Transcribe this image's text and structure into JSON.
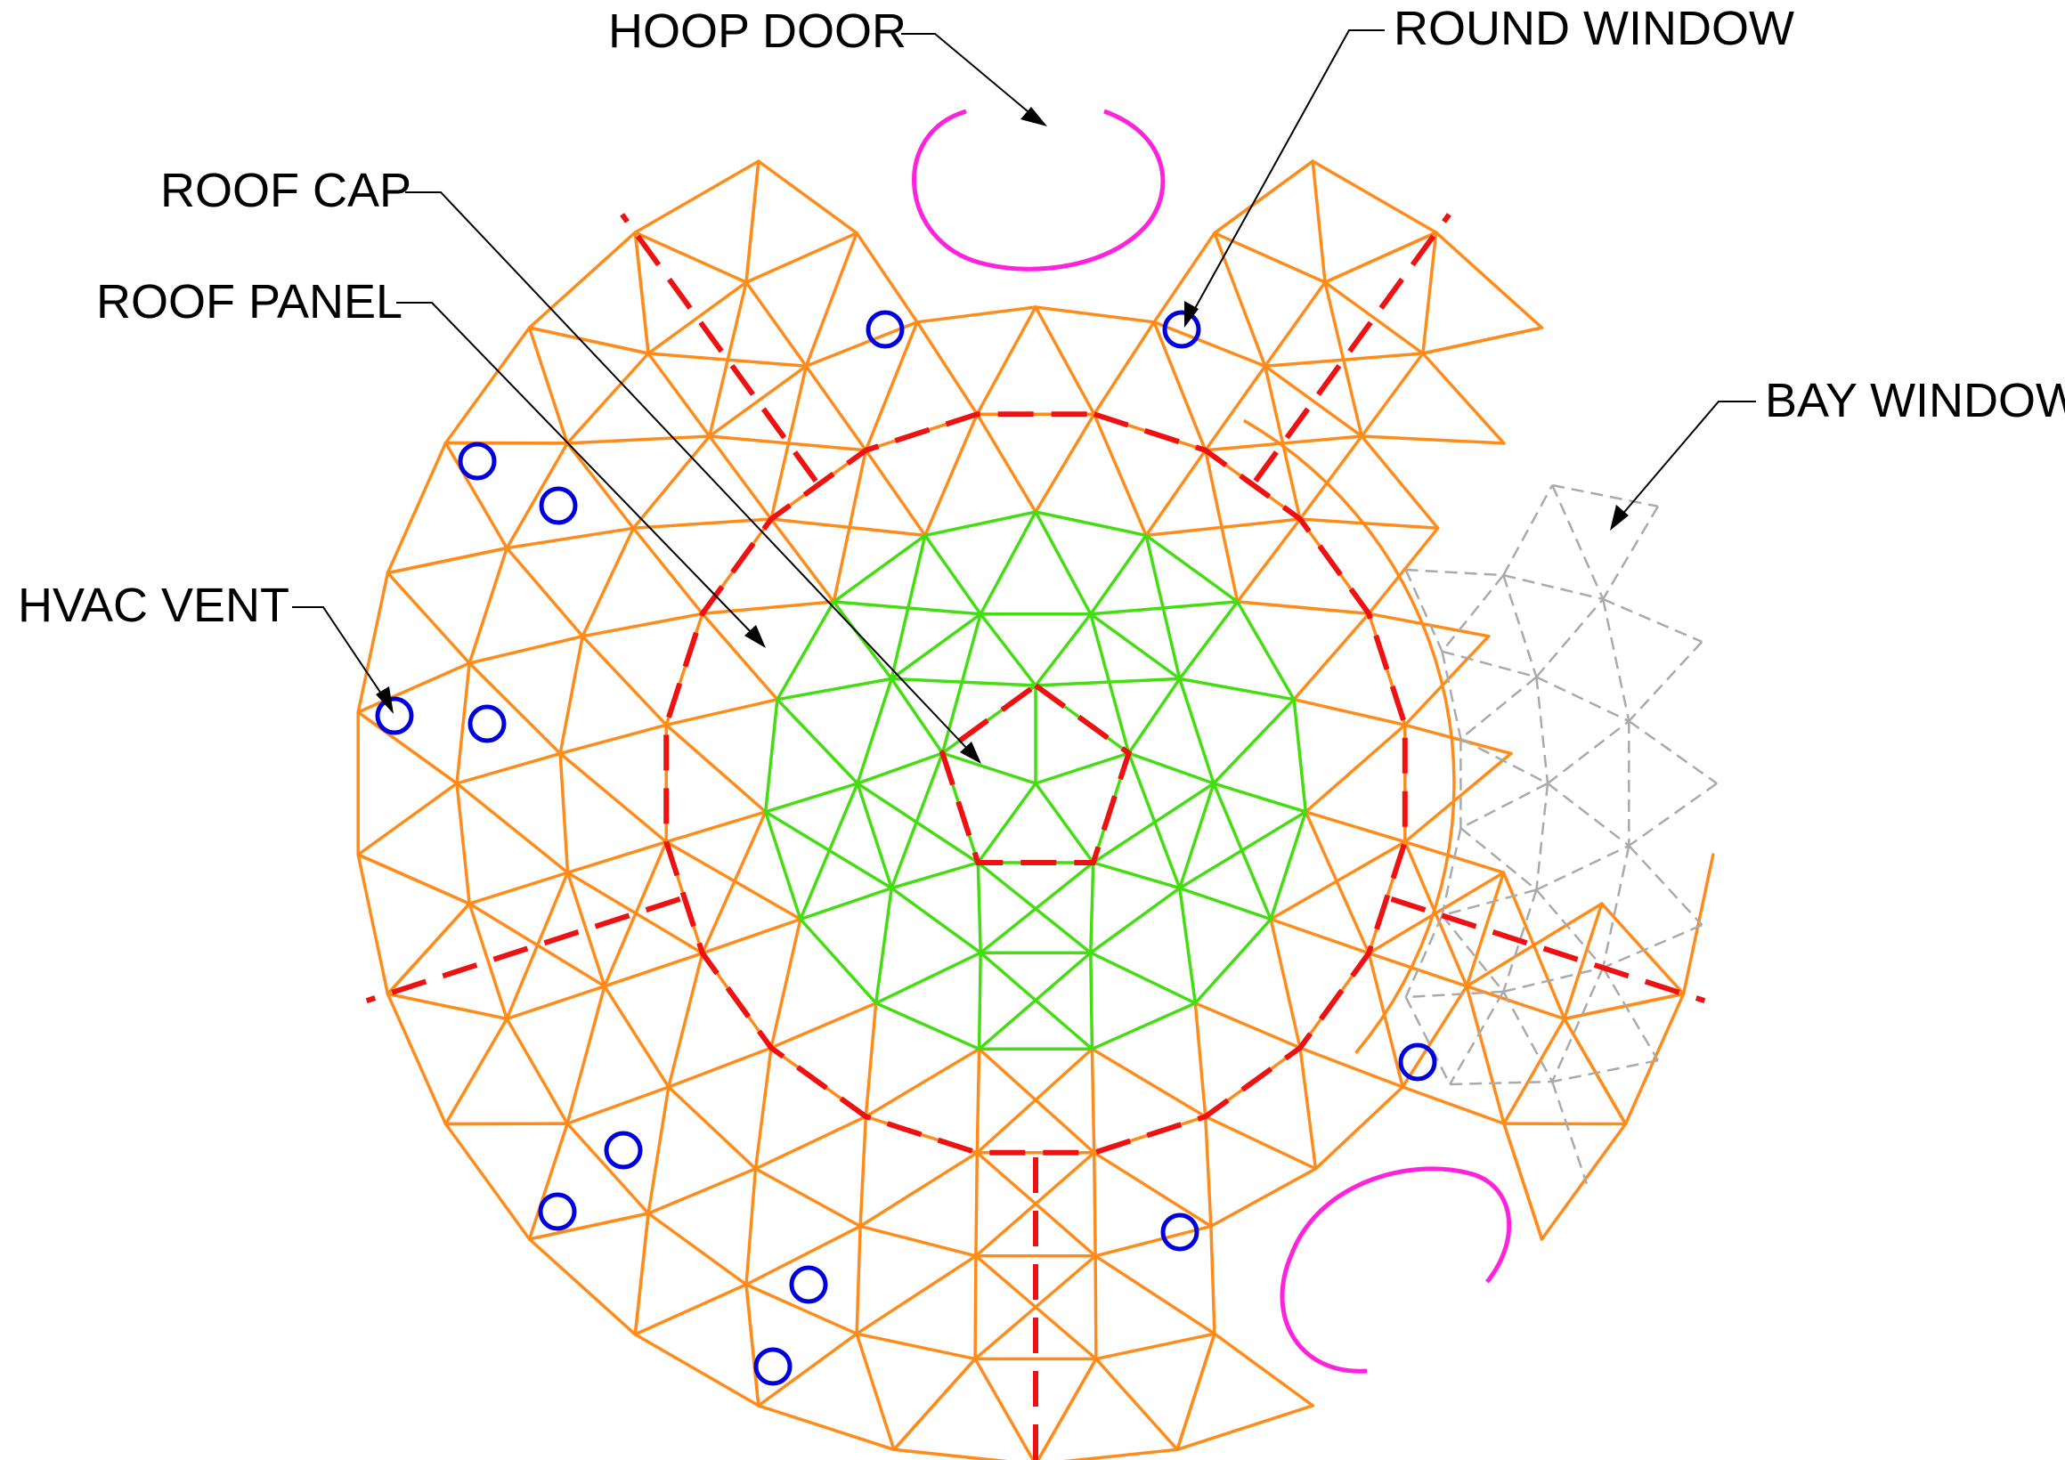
{
  "colors": {
    "dome_frame": "#ff8c1a",
    "roof_cap": "#44dd11",
    "panel_seam": "#ee1111",
    "hoop_door": "#ff22dd",
    "hvac_vent": "#0000dd",
    "bay_window": "#aaaaaa",
    "label_text": "#000000"
  },
  "labels": {
    "hoop_door": "HOOP DOOR",
    "round_window": "ROUND WINDOW",
    "roof_cap": "ROOF CAP",
    "roof_panel": "ROOF PANEL",
    "bay_window": "BAY WINDOW",
    "hvac_vent": "HVAC VENT"
  },
  "icons": {
    "hvac_vent": "circle-outline-icon",
    "leader_arrow": "arrowhead-icon"
  }
}
